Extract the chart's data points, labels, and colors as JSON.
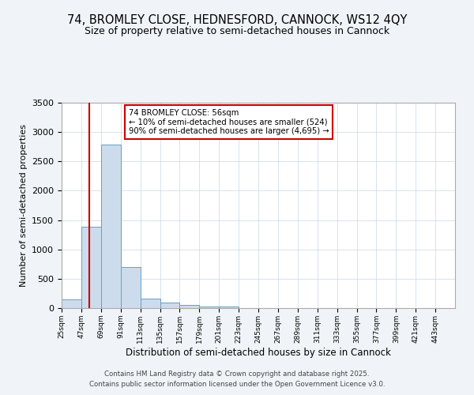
{
  "title1": "74, BROMLEY CLOSE, HEDNESFORD, CANNOCK, WS12 4QY",
  "title2": "Size of property relative to semi-detached houses in Cannock",
  "xlabel": "Distribution of semi-detached houses by size in Cannock",
  "ylabel": "Number of semi-detached properties",
  "footer1": "Contains HM Land Registry data © Crown copyright and database right 2025.",
  "footer2": "Contains public sector information licensed under the Open Government Licence v3.0.",
  "bin_edges": [
    25,
    47,
    69,
    91,
    113,
    135,
    157,
    179,
    201,
    223,
    245,
    267,
    289,
    311,
    333,
    355,
    377,
    399,
    421,
    443,
    465
  ],
  "bar_heights": [
    150,
    1390,
    2780,
    700,
    165,
    90,
    55,
    30,
    25,
    0,
    0,
    0,
    0,
    0,
    0,
    0,
    0,
    0,
    0,
    0
  ],
  "bar_color": "#cddcec",
  "bar_edge_color": "#6a9fc0",
  "property_size": 56,
  "vline_color": "#cc0000",
  "annotation_text": "74 BROMLEY CLOSE: 56sqm\n← 10% of semi-detached houses are smaller (524)\n90% of semi-detached houses are larger (4,695) →",
  "annotation_box_color": "#ffffff",
  "annotation_box_edge": "#cc0000",
  "ylim": [
    0,
    3500
  ],
  "yticks": [
    0,
    500,
    1000,
    1500,
    2000,
    2500,
    3000,
    3500
  ],
  "background_color": "#f0f4f8",
  "plot_bg_color": "#ffffff",
  "title1_fontsize": 10.5,
  "title2_fontsize": 9,
  "grid_color": "#c8d8e8"
}
